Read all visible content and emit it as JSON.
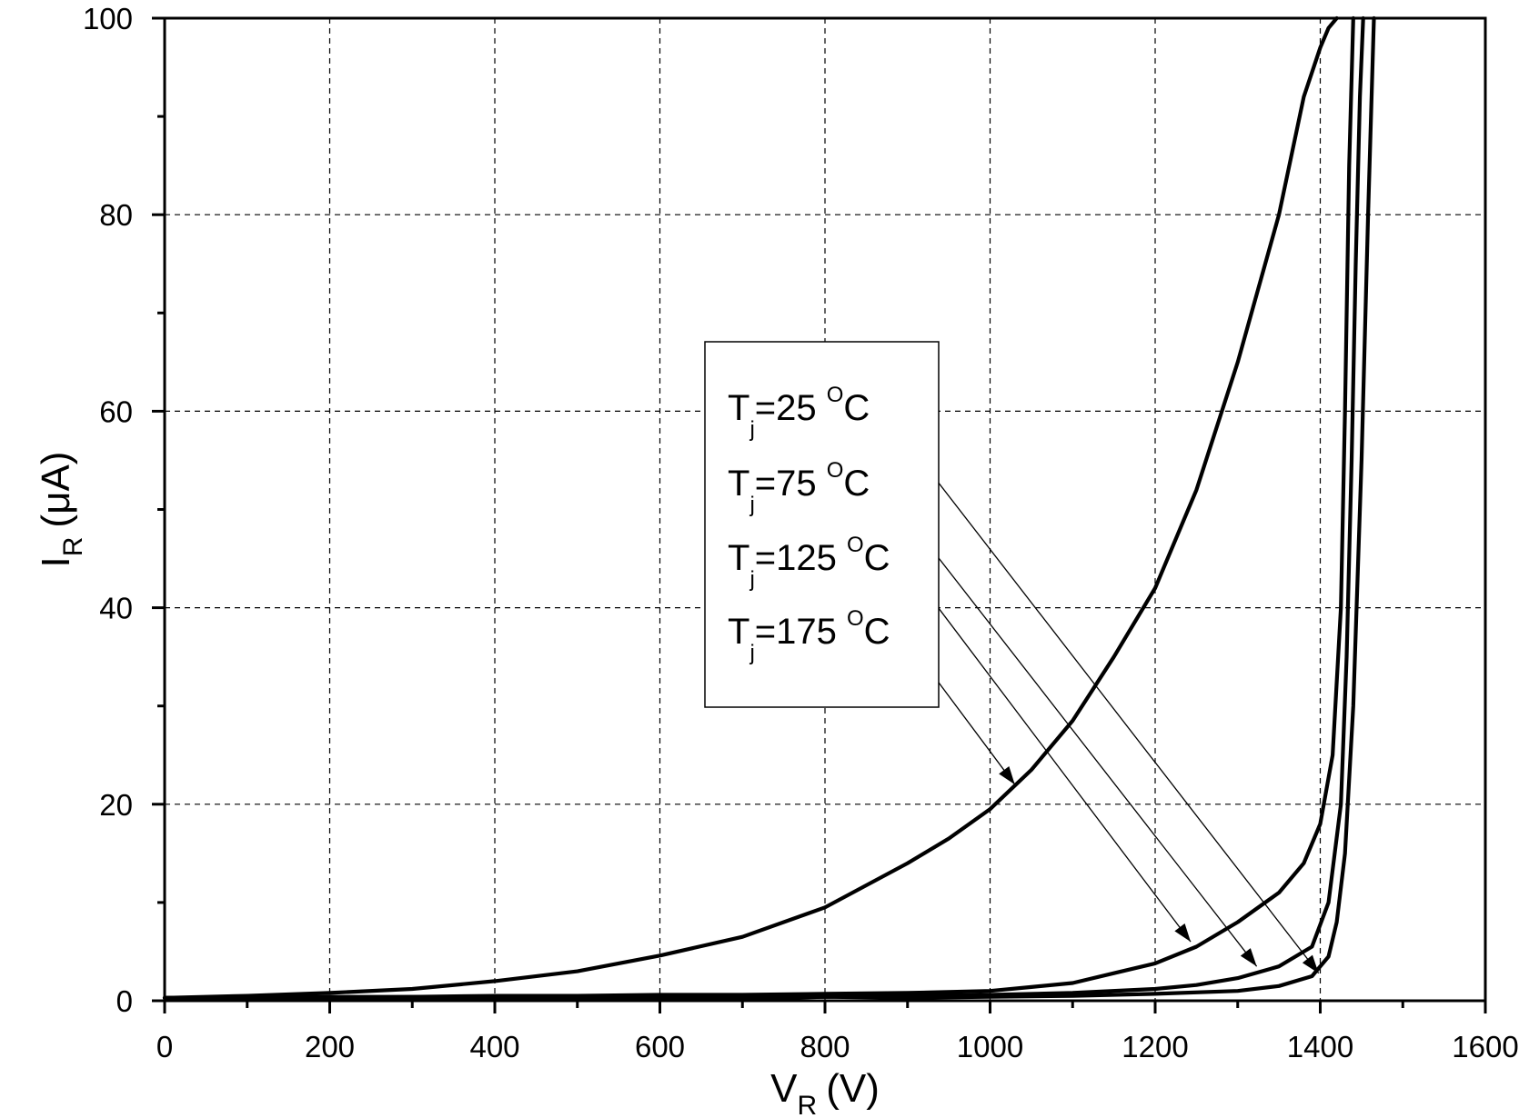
{
  "chart_data": {
    "type": "line",
    "title": "",
    "xlabel": {
      "main": "V",
      "sub": "R",
      "unit": "(V)"
    },
    "ylabel": {
      "main": "I",
      "sub": "R",
      "unit": "(μA)"
    },
    "xlim": [
      0,
      1600
    ],
    "ylim": [
      0,
      100
    ],
    "xticks": [
      0,
      200,
      400,
      600,
      800,
      1000,
      1200,
      1400,
      1600
    ],
    "yticks": [
      0,
      20,
      40,
      60,
      80,
      100
    ],
    "xtick_labels": [
      "0",
      "200",
      "400",
      "600",
      "800",
      "1000",
      "1200",
      "1400",
      "1600"
    ],
    "ytick_labels": [
      "0",
      "20",
      "40",
      "60",
      "80",
      "100"
    ],
    "grid": true,
    "legend": {
      "placement": "center",
      "entries": [
        {
          "main": "T",
          "sub": "j",
          "value": "=25 ",
          "deg": "O",
          "unit": "C",
          "arrow_to": [
            1398,
            2.8
          ]
        },
        {
          "main": "T",
          "sub": "j",
          "value": "=75 ",
          "deg": "O",
          "unit": "C",
          "arrow_to": [
            1323,
            3.5
          ]
        },
        {
          "main": "T",
          "sub": "j",
          "value": "=125 ",
          "deg": "O",
          "unit": "C",
          "arrow_to": [
            1243,
            6.0
          ]
        },
        {
          "main": "T",
          "sub": "j",
          "value": "=175 ",
          "deg": "O",
          "unit": "C",
          "arrow_to": [
            1030,
            22.0
          ]
        }
      ]
    },
    "series": [
      {
        "name": "Tj=25 °C",
        "x": [
          0,
          100,
          200,
          300,
          400,
          500,
          600,
          700,
          800,
          900,
          1000,
          1100,
          1200,
          1300,
          1350,
          1390,
          1410,
          1420,
          1430,
          1440,
          1450,
          1458,
          1465
        ],
        "y": [
          0.3,
          0.2,
          0.3,
          0.2,
          0.3,
          0.2,
          0.3,
          0.2,
          0.4,
          0.3,
          0.4,
          0.5,
          0.7,
          1.0,
          1.5,
          2.5,
          4.5,
          8,
          15,
          30,
          55,
          80,
          100
        ]
      },
      {
        "name": "Tj=75 °C",
        "x": [
          0,
          100,
          200,
          300,
          400,
          500,
          600,
          700,
          800,
          900,
          1000,
          1100,
          1200,
          1250,
          1300,
          1350,
          1390,
          1410,
          1425,
          1432,
          1438,
          1443,
          1448,
          1452
        ],
        "y": [
          0.3,
          0.3,
          0.3,
          0.4,
          0.3,
          0.3,
          0.4,
          0.3,
          0.4,
          0.5,
          0.6,
          0.8,
          1.2,
          1.6,
          2.3,
          3.5,
          5.5,
          10,
          20,
          35,
          55,
          75,
          92,
          100
        ]
      },
      {
        "name": "Tj=125 °C",
        "x": [
          0,
          100,
          200,
          300,
          400,
          500,
          600,
          700,
          800,
          900,
          1000,
          1050,
          1100,
          1150,
          1200,
          1250,
          1300,
          1350,
          1380,
          1400,
          1415,
          1425,
          1430,
          1435,
          1440
        ],
        "y": [
          0.3,
          0.3,
          0.4,
          0.4,
          0.5,
          0.5,
          0.6,
          0.6,
          0.7,
          0.8,
          1.0,
          1.4,
          1.8,
          2.8,
          3.8,
          5.5,
          8.0,
          11.0,
          14.0,
          18.0,
          25.0,
          40.0,
          60.0,
          85.0,
          100.0
        ]
      },
      {
        "name": "Tj=175 °C",
        "x": [
          0,
          100,
          200,
          300,
          400,
          500,
          600,
          700,
          800,
          900,
          950,
          1000,
          1050,
          1100,
          1150,
          1200,
          1250,
          1300,
          1350,
          1380,
          1400,
          1410,
          1420
        ],
        "y": [
          0.3,
          0.5,
          0.8,
          1.2,
          2.0,
          3.0,
          4.6,
          6.5,
          9.5,
          14.0,
          16.5,
          19.5,
          23.5,
          28.5,
          35.0,
          42.0,
          52.0,
          65.0,
          80.0,
          92.0,
          97.0,
          99.0,
          100.0
        ]
      }
    ]
  }
}
